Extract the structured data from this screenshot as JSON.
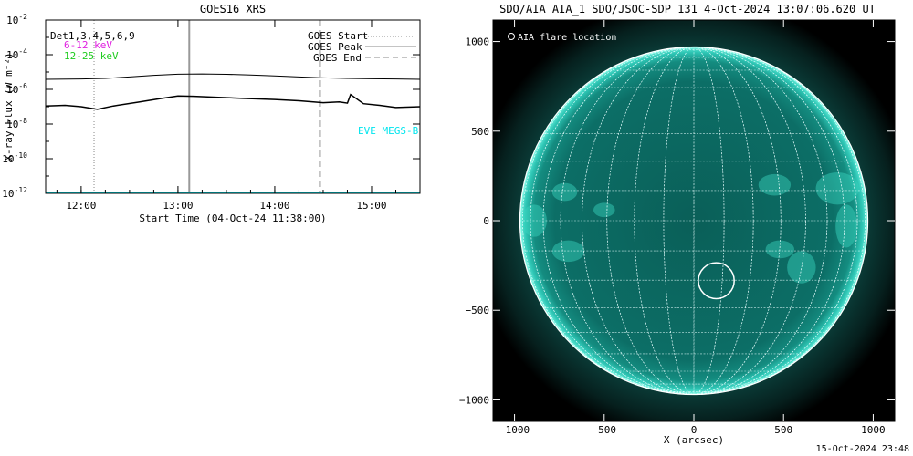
{
  "goes_panel": {
    "title": "GOES16 XRS",
    "ylabel": "X-ray Flux (W m⁻²)",
    "xlabel": "Start Time (04-Oct-24 11:38:00)",
    "y_ticks": [
      {
        "base": "10",
        "exp": "-2"
      },
      {
        "base": "10",
        "exp": "-4"
      },
      {
        "base": "10",
        "exp": "-6"
      },
      {
        "base": "10",
        "exp": "-8"
      },
      {
        "base": "10",
        "exp": "-10"
      },
      {
        "base": "10",
        "exp": "-12"
      }
    ],
    "x_ticks": [
      "12:00",
      "13:00",
      "14:00",
      "15:00"
    ],
    "legend_left": [
      {
        "text": "Det1,3,4,5,6,9",
        "color": "#000000"
      },
      {
        "text": "6-12 keV",
        "color": "#e020e0"
      },
      {
        "text": "12-25 keV",
        "color": "#20cc20"
      }
    ],
    "legend_right": [
      {
        "text": "GOES Start",
        "style": "dotted"
      },
      {
        "text": "GOES Peak",
        "style": "solid"
      },
      {
        "text": "GOES End",
        "style": "dashed"
      }
    ],
    "annotation": "EVE MEGS-B",
    "annotation_color": "#00e5ee"
  },
  "aia_panel": {
    "title": "SDO/AIA AIA_1 SDO/JSOC-SDP 131  4-Oct-2024 13:07:06.620 UT",
    "xlabel": "X (arcsec)",
    "legend": "AIA flare location",
    "x_ticks": [
      "−1000",
      "−500",
      "0",
      "500",
      "1000"
    ],
    "y_ticks": [
      "1000",
      "500",
      "0",
      "−500",
      "−1000"
    ],
    "disk_color": "#0b6f66",
    "limb_color": "#47e3cf"
  },
  "footer": "15-Oct-2024 23:48",
  "chart_data": [
    {
      "type": "line",
      "title": "GOES16 XRS",
      "xlabel": "Start Time (04-Oct-24 11:38:00)",
      "ylabel": "X-ray Flux (W m^-2)",
      "yscale": "log",
      "ylim": [
        1e-12,
        0.01
      ],
      "xlim": [
        "11:38",
        "15:30"
      ],
      "series": [
        {
          "name": "Det1,3,4,5,6,9",
          "x": [
            "11:38",
            "12:00",
            "12:15",
            "12:30",
            "12:45",
            "13:00",
            "13:15",
            "13:30",
            "13:45",
            "14:00",
            "14:15",
            "14:30",
            "14:45",
            "15:00",
            "15:15",
            "15:30"
          ],
          "values": [
            3.8e-06,
            4e-06,
            4.3e-06,
            5.2e-06,
            6.5e-06,
            7.5e-06,
            7.8e-06,
            7.4e-06,
            6.8e-06,
            6e-06,
            5.2e-06,
            4.6e-06,
            4.3e-06,
            4.1e-06,
            4e-06,
            3.8e-06
          ]
        },
        {
          "x": [
            "11:38",
            "11:50",
            "12:00",
            "12:10",
            "12:20",
            "12:35",
            "12:50",
            "13:00",
            "13:10",
            "13:25",
            "13:40",
            "14:00",
            "14:15",
            "14:30",
            "14:40",
            "14:45",
            "14:47",
            "14:55",
            "15:05",
            "15:15",
            "15:30"
          ],
          "values": [
            1.1e-07,
            1.2e-07,
            1e-07,
            7e-08,
            1.1e-07,
            1.8e-07,
            3e-07,
            4.2e-07,
            4e-07,
            3.5e-07,
            3e-07,
            2.6e-07,
            2.2e-07,
            1.7e-07,
            1.9e-07,
            1.6e-07,
            5e-07,
            1.5e-07,
            1.2e-07,
            9e-08,
            1e-07
          ]
        }
      ],
      "events": {
        "goes_start": "12:08",
        "goes_peak": "13:07",
        "goes_end": "14:28"
      },
      "legend": "top-right",
      "grid": false
    },
    {
      "type": "image",
      "title": "SDO/AIA AIA_1 SDO/JSOC-SDP 131  4-Oct-2024 13:07:06.620 UT",
      "xlabel": "X (arcsec)",
      "xlim": [
        -1120,
        1120
      ],
      "ylim": [
        -1120,
        1120
      ],
      "x_ticks": [
        -1000,
        -500,
        0,
        500,
        1000
      ],
      "y_ticks": [
        -1000,
        -500,
        0,
        500,
        1000
      ],
      "solar_radius_arcsec": 970,
      "flare_location": {
        "x": 125,
        "y": -335,
        "radius": 100
      }
    }
  ]
}
